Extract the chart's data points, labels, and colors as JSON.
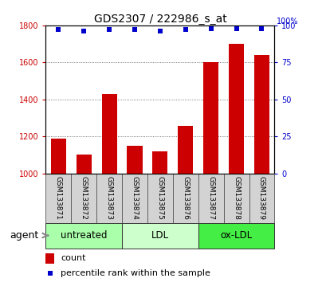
{
  "title": "GDS2307 / 222986_s_at",
  "samples": [
    "GSM133871",
    "GSM133872",
    "GSM133873",
    "GSM133874",
    "GSM133875",
    "GSM133876",
    "GSM133877",
    "GSM133878",
    "GSM133879"
  ],
  "counts": [
    1190,
    1100,
    1430,
    1150,
    1120,
    1255,
    1600,
    1700,
    1640
  ],
  "percentiles": [
    97,
    96,
    97,
    97,
    96,
    97,
    98,
    98,
    98
  ],
  "groups": [
    {
      "label": "untreated",
      "indices": [
        0,
        1,
        2
      ],
      "color": "#aaffaa"
    },
    {
      "label": "LDL",
      "indices": [
        3,
        4,
        5
      ],
      "color": "#ccffcc"
    },
    {
      "label": "ox-LDL",
      "indices": [
        6,
        7,
        8
      ],
      "color": "#44ee44"
    }
  ],
  "ylim_left": [
    1000,
    1800
  ],
  "ylim_right": [
    0,
    100
  ],
  "yticks_left": [
    1000,
    1200,
    1400,
    1600,
    1800
  ],
  "yticks_right": [
    0,
    25,
    50,
    75,
    100
  ],
  "bar_color": "#cc0000",
  "dot_color": "#0000cc",
  "bar_width": 0.6,
  "grid_color": "#555555",
  "bg_color": "#ffffff",
  "left_tick_color": "#cc0000",
  "right_tick_color": "#0000cc",
  "legend_count_label": "count",
  "legend_pct_label": "percentile rank within the sample",
  "title_fontsize": 10,
  "tick_fontsize": 7,
  "sample_fontsize": 6.5,
  "group_label_fontsize": 8.5,
  "legend_fontsize": 8,
  "agent_fontsize": 9
}
